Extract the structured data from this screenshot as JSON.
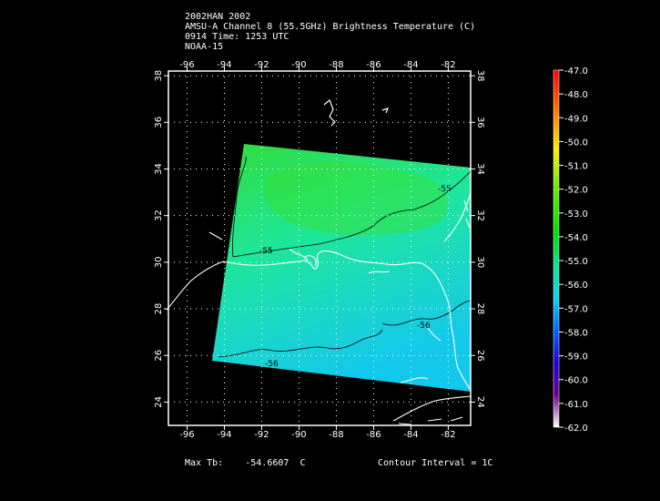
{
  "header": {
    "line1": "2002HAN 2002",
    "line2": "AMSU-A Channel 8 (55.5GHz) Brightness Temperature (C)",
    "line3": "0914 Time: 1253 UTC",
    "line4": "NOAA-15"
  },
  "map": {
    "lon_ticks": [
      "-96",
      "-94",
      "-92",
      "-90",
      "-88",
      "-86",
      "-84",
      "-82"
    ],
    "lat_ticks": [
      "24",
      "26",
      "28",
      "30",
      "32",
      "34",
      "36",
      "38"
    ],
    "lon_range": [
      -97,
      -80.8
    ],
    "lat_range": [
      23.0,
      38.2
    ],
    "grid": "dotted",
    "contour_labels": [
      "-55",
      "-55",
      "-56",
      "-56"
    ],
    "colors": {
      "background": "#000000",
      "frame": "#ffffff",
      "coast": "#ffffff",
      "contour": "#000000"
    }
  },
  "colorbar": {
    "ticks": [
      "-47.0",
      "-48.0",
      "-49.0",
      "-50.0",
      "-51.0",
      "-52.0",
      "-53.0",
      "-54.0",
      "-55.0",
      "-56.0",
      "-57.0",
      "-58.0",
      "-59.0",
      "-60.0",
      "-61.0",
      "-62.0"
    ],
    "range": [
      -62.0,
      -47.0
    ]
  },
  "footer": {
    "max_label": "Max Tb:",
    "max_value": "-54.6607",
    "max_unit": "C",
    "contour": "Contour Interval = 1C"
  }
}
